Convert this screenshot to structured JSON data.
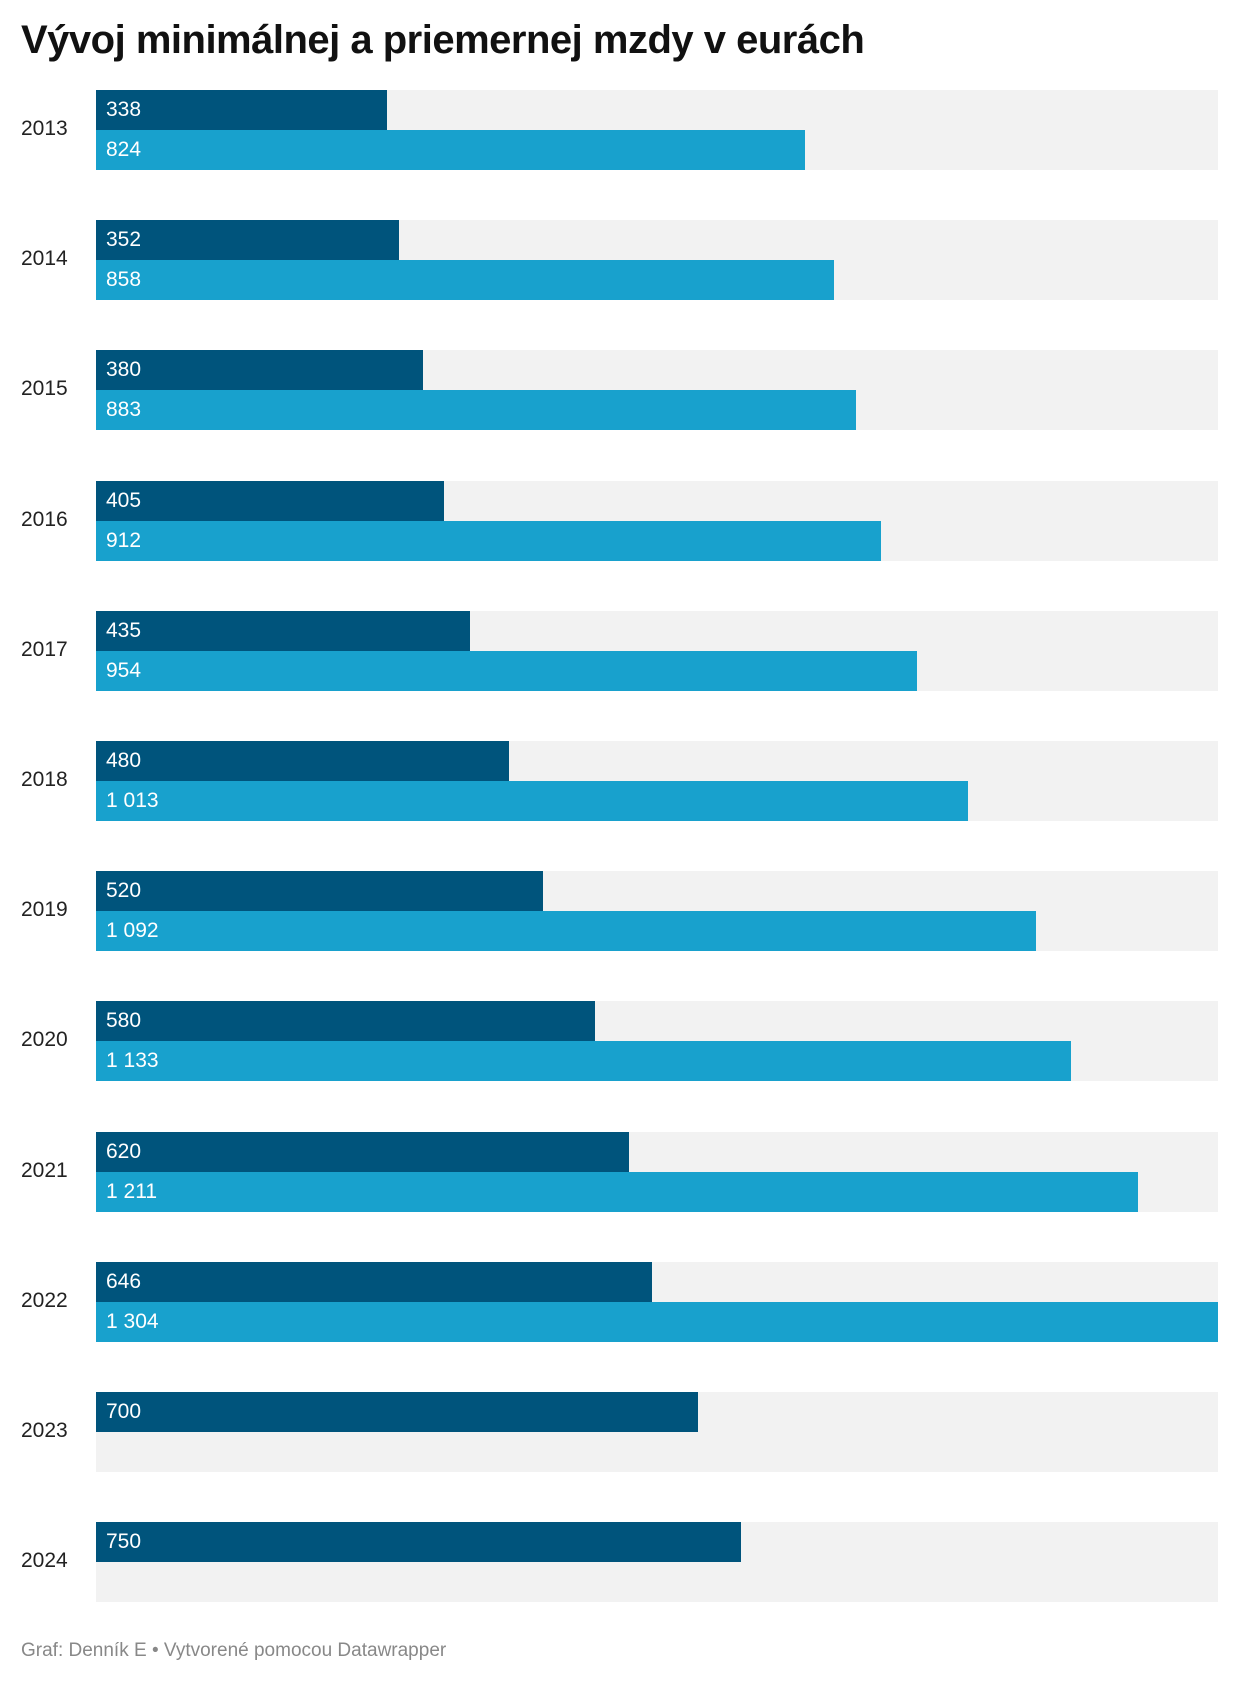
{
  "chart_data": {
    "type": "bar",
    "orientation": "horizontal",
    "title": "Vývoj minimálnej a priemernej mzdy v eurách",
    "categories": [
      "2013",
      "2014",
      "2015",
      "2016",
      "2017",
      "2018",
      "2019",
      "2020",
      "2021",
      "2022",
      "2023",
      "2024"
    ],
    "series": [
      {
        "values": [
          338,
          352,
          380,
          405,
          435,
          480,
          520,
          580,
          620,
          646,
          700,
          750
        ],
        "labels": [
          "338",
          "352",
          "380",
          "405",
          "435",
          "480",
          "520",
          "580",
          "620",
          "646",
          "700",
          "750"
        ],
        "color": "#00547c"
      },
      {
        "values": [
          824,
          858,
          883,
          912,
          954,
          1013,
          1092,
          1133,
          1211,
          1304,
          null,
          null
        ],
        "labels": [
          "824",
          "858",
          "883",
          "912",
          "954",
          "1 013",
          "1 092",
          "1 133",
          "1 211",
          "1 304",
          "",
          ""
        ],
        "color": "#18a1cd"
      }
    ],
    "xlim": [
      0,
      1304
    ],
    "background_track_color": "#f2f2f2",
    "grid": false
  },
  "footer": "Graf: Denník E • Vytvorené pomocou Datawrapper"
}
